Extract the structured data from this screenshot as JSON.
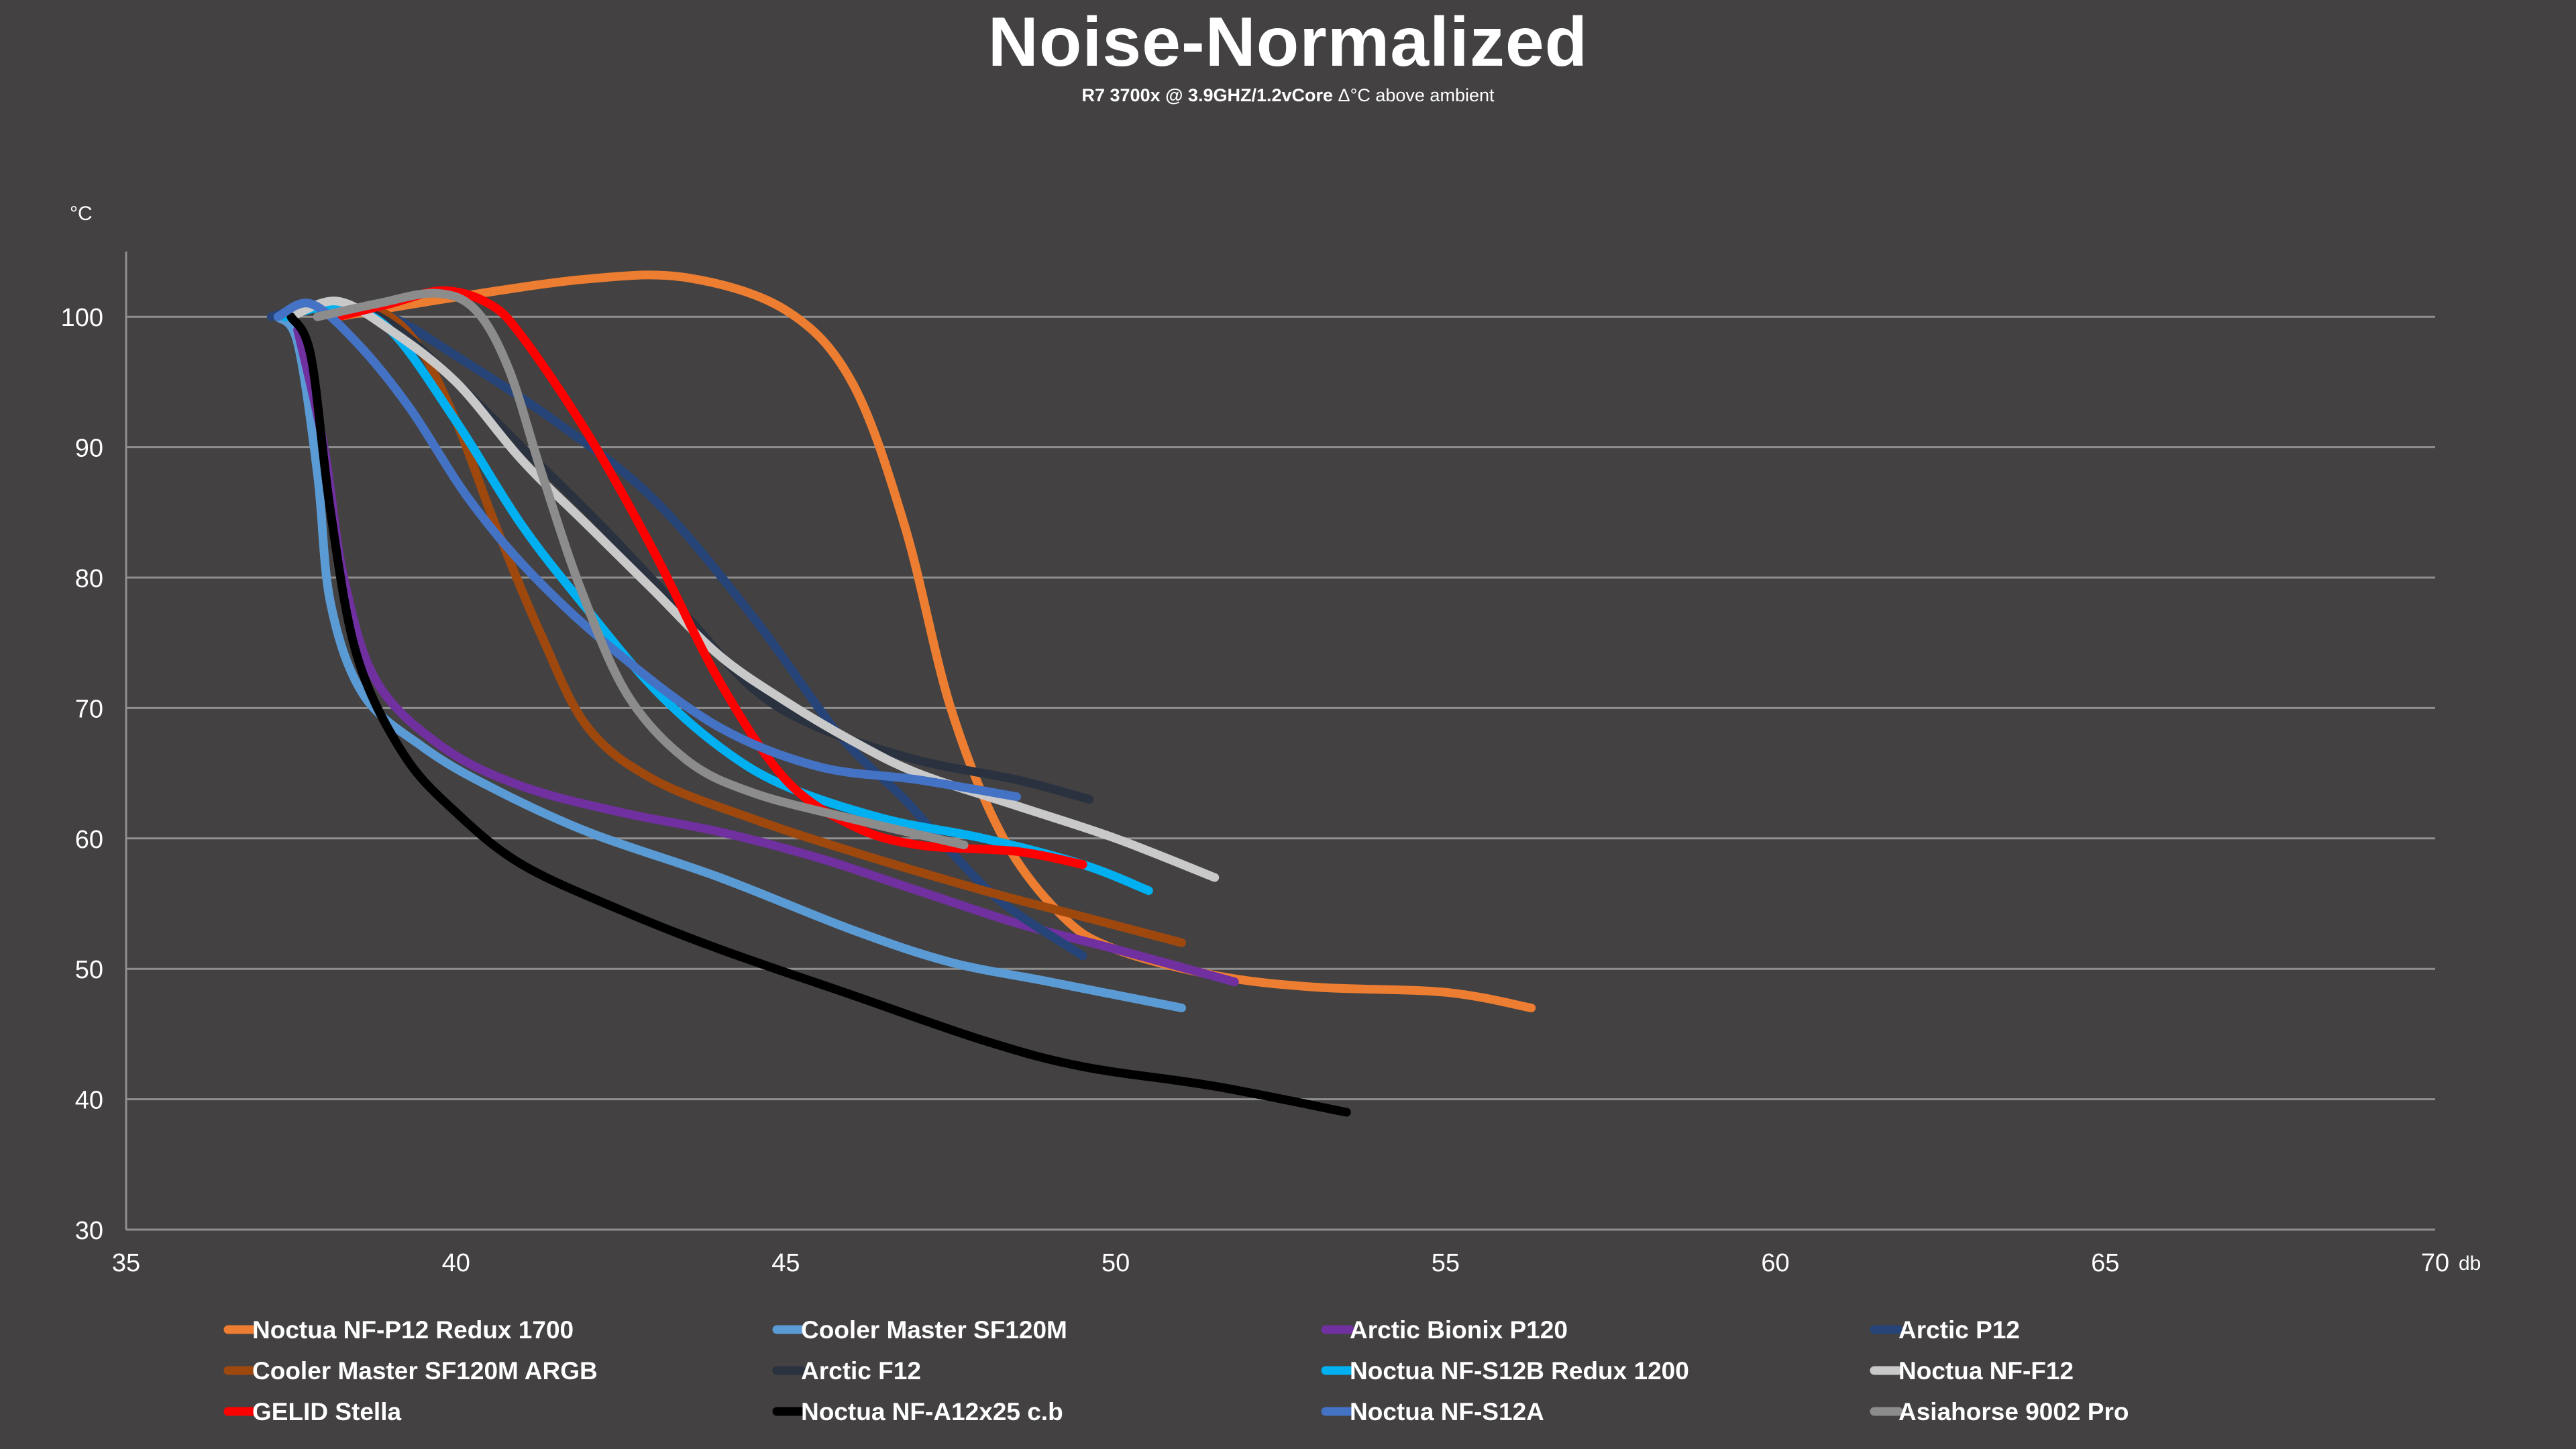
{
  "chart_data": {
    "type": "line",
    "title": "Noise-Normalized",
    "subtitle_bold": "R7 3700x @ 3.9GHZ/1.2vCore",
    "subtitle_rest": " Δ°C above ambient",
    "xlabel": "db",
    "ylabel": "°C",
    "xlim": [
      35,
      70
    ],
    "ylim": [
      30,
      105
    ],
    "xticks": [
      35,
      40,
      45,
      50,
      55,
      60,
      65,
      70
    ],
    "yticks": [
      30,
      40,
      50,
      60,
      70,
      80,
      90,
      100
    ],
    "grid": true,
    "legend_position": "bottom",
    "series": [
      {
        "name": "Noctua NF-P12 Redux 1700",
        "color": "#ed7d31",
        "points": [
          [
            38.2,
            100
          ],
          [
            40,
            101.5
          ],
          [
            42,
            102.9
          ],
          [
            43.5,
            103
          ],
          [
            45,
            100.5
          ],
          [
            46,
            95
          ],
          [
            46.8,
            84
          ],
          [
            47.5,
            70
          ],
          [
            48.3,
            60
          ],
          [
            49.2,
            54
          ],
          [
            50,
            51.5
          ],
          [
            51.5,
            49.5
          ],
          [
            53,
            48.6
          ],
          [
            55,
            48.2
          ],
          [
            56.3,
            47
          ]
        ]
      },
      {
        "name": "Cooler Master SF120M",
        "color": "#5b9bd5",
        "points": [
          [
            37.3,
            100
          ],
          [
            37.6,
            98
          ],
          [
            37.9,
            88
          ],
          [
            38.1,
            78
          ],
          [
            38.6,
            71
          ],
          [
            39.5,
            67
          ],
          [
            40.5,
            64
          ],
          [
            42,
            60.5
          ],
          [
            44,
            57
          ],
          [
            46,
            53
          ],
          [
            47.5,
            50.5
          ],
          [
            49,
            49
          ],
          [
            51,
            47
          ]
        ]
      },
      {
        "name": "Arctic Bionix P120",
        "color": "#7030a0",
        "points": [
          [
            37.6,
            99
          ],
          [
            38,
            90
          ],
          [
            38.3,
            80
          ],
          [
            38.8,
            72
          ],
          [
            39.8,
            67
          ],
          [
            41,
            64
          ],
          [
            42.5,
            62
          ],
          [
            44,
            60.5
          ],
          [
            45.5,
            58.5
          ],
          [
            47,
            56
          ],
          [
            48.5,
            53.5
          ],
          [
            50,
            51.5
          ],
          [
            51.8,
            49
          ]
        ]
      },
      {
        "name": "Arctic P12",
        "color": "#264478",
        "points": [
          [
            37.2,
            100
          ],
          [
            38,
            101
          ],
          [
            39,
            100
          ],
          [
            40,
            97
          ],
          [
            41.5,
            92
          ],
          [
            43,
            86
          ],
          [
            44.5,
            77
          ],
          [
            45.8,
            68
          ],
          [
            46.8,
            63
          ],
          [
            47.5,
            59
          ],
          [
            48.3,
            55
          ],
          [
            49.5,
            51
          ]
        ]
      },
      {
        "name": "Cooler Master SF120M ARGB",
        "color": "#9e480e",
        "points": [
          [
            38.2,
            100
          ],
          [
            38.8,
            100.5
          ],
          [
            39.4,
            98
          ],
          [
            40,
            92
          ],
          [
            40.6,
            84
          ],
          [
            41.3,
            75.5
          ],
          [
            42,
            68.5
          ],
          [
            43,
            64.5
          ],
          [
            44.5,
            61.5
          ],
          [
            46,
            59
          ],
          [
            48,
            56
          ],
          [
            49.5,
            54
          ],
          [
            51,
            52
          ]
        ]
      },
      {
        "name": "Arctic F12",
        "color": "#2a3240",
        "points": [
          [
            37.4,
            100
          ],
          [
            38.2,
            101
          ],
          [
            39,
            99.5
          ],
          [
            40,
            95
          ],
          [
            41,
            90
          ],
          [
            42.2,
            84
          ],
          [
            43.5,
            77
          ],
          [
            44.5,
            71.5
          ],
          [
            45.5,
            68.5
          ],
          [
            47,
            66
          ],
          [
            48.5,
            64.5
          ],
          [
            49.6,
            63
          ]
        ]
      },
      {
        "name": "Noctua NF-S12B Redux 1200",
        "color": "#00b0f0",
        "points": [
          [
            37.4,
            100
          ],
          [
            38.2,
            100.8
          ],
          [
            39,
            99
          ],
          [
            40,
            92
          ],
          [
            41,
            84
          ],
          [
            42,
            77.5
          ],
          [
            43,
            71.5
          ],
          [
            44,
            67
          ],
          [
            45,
            64
          ],
          [
            46.5,
            61.5
          ],
          [
            48,
            60
          ],
          [
            49.5,
            58
          ],
          [
            50.5,
            56
          ]
        ]
      },
      {
        "name": "Noctua NF-F12",
        "color": "#c9c9c9",
        "points": [
          [
            37.5,
            100
          ],
          [
            38.2,
            101.2
          ],
          [
            39,
            99
          ],
          [
            40,
            95
          ],
          [
            41,
            89
          ],
          [
            42,
            84
          ],
          [
            43,
            79
          ],
          [
            44,
            74
          ],
          [
            45,
            70.5
          ],
          [
            46,
            67.5
          ],
          [
            47,
            65
          ],
          [
            48.5,
            62.5
          ],
          [
            50,
            60
          ],
          [
            51.5,
            57
          ]
        ]
      },
      {
        "name": "GELID Stella",
        "color": "#ff0000",
        "points": [
          [
            38.2,
            100
          ],
          [
            39,
            101
          ],
          [
            39.8,
            102
          ],
          [
            40.5,
            101
          ],
          [
            41,
            98.5
          ],
          [
            42,
            91
          ],
          [
            43,
            82
          ],
          [
            44,
            72
          ],
          [
            45,
            64.5
          ],
          [
            46,
            61
          ],
          [
            47,
            59.5
          ],
          [
            48.5,
            59
          ],
          [
            49.5,
            58
          ]
        ]
      },
      {
        "name": "Noctua NF-A12x25 c.b",
        "color": "#000000",
        "points": [
          [
            37.5,
            100
          ],
          [
            37.8,
            97
          ],
          [
            38.1,
            85
          ],
          [
            38.5,
            74
          ],
          [
            39.2,
            66.5
          ],
          [
            40,
            62
          ],
          [
            41,
            58
          ],
          [
            42.5,
            54.5
          ],
          [
            44,
            51.5
          ],
          [
            46,
            48
          ],
          [
            48,
            44.5
          ],
          [
            49.5,
            42.5
          ],
          [
            51.5,
            41
          ],
          [
            53.5,
            39
          ]
        ]
      },
      {
        "name": "Noctua NF-S12A",
        "color": "#4472c4",
        "points": [
          [
            37.3,
            100
          ],
          [
            37.8,
            101
          ],
          [
            38.5,
            98
          ],
          [
            39.3,
            93
          ],
          [
            40.2,
            86
          ],
          [
            41.2,
            80
          ],
          [
            42.5,
            74
          ],
          [
            44,
            68.5
          ],
          [
            45.5,
            65.5
          ],
          [
            47,
            64.5
          ],
          [
            48.5,
            63.2
          ]
        ]
      },
      {
        "name": "Asiahorse 9002 Pro",
        "color": "#8c8c8c",
        "points": [
          [
            37.9,
            100
          ],
          [
            38.8,
            101
          ],
          [
            39.7,
            101.8
          ],
          [
            40.3,
            100.5
          ],
          [
            40.8,
            96
          ],
          [
            41.3,
            88
          ],
          [
            41.9,
            79
          ],
          [
            42.6,
            71
          ],
          [
            43.5,
            66
          ],
          [
            44.5,
            63.5
          ],
          [
            46,
            61.5
          ],
          [
            47.7,
            59.5
          ]
        ]
      }
    ]
  }
}
